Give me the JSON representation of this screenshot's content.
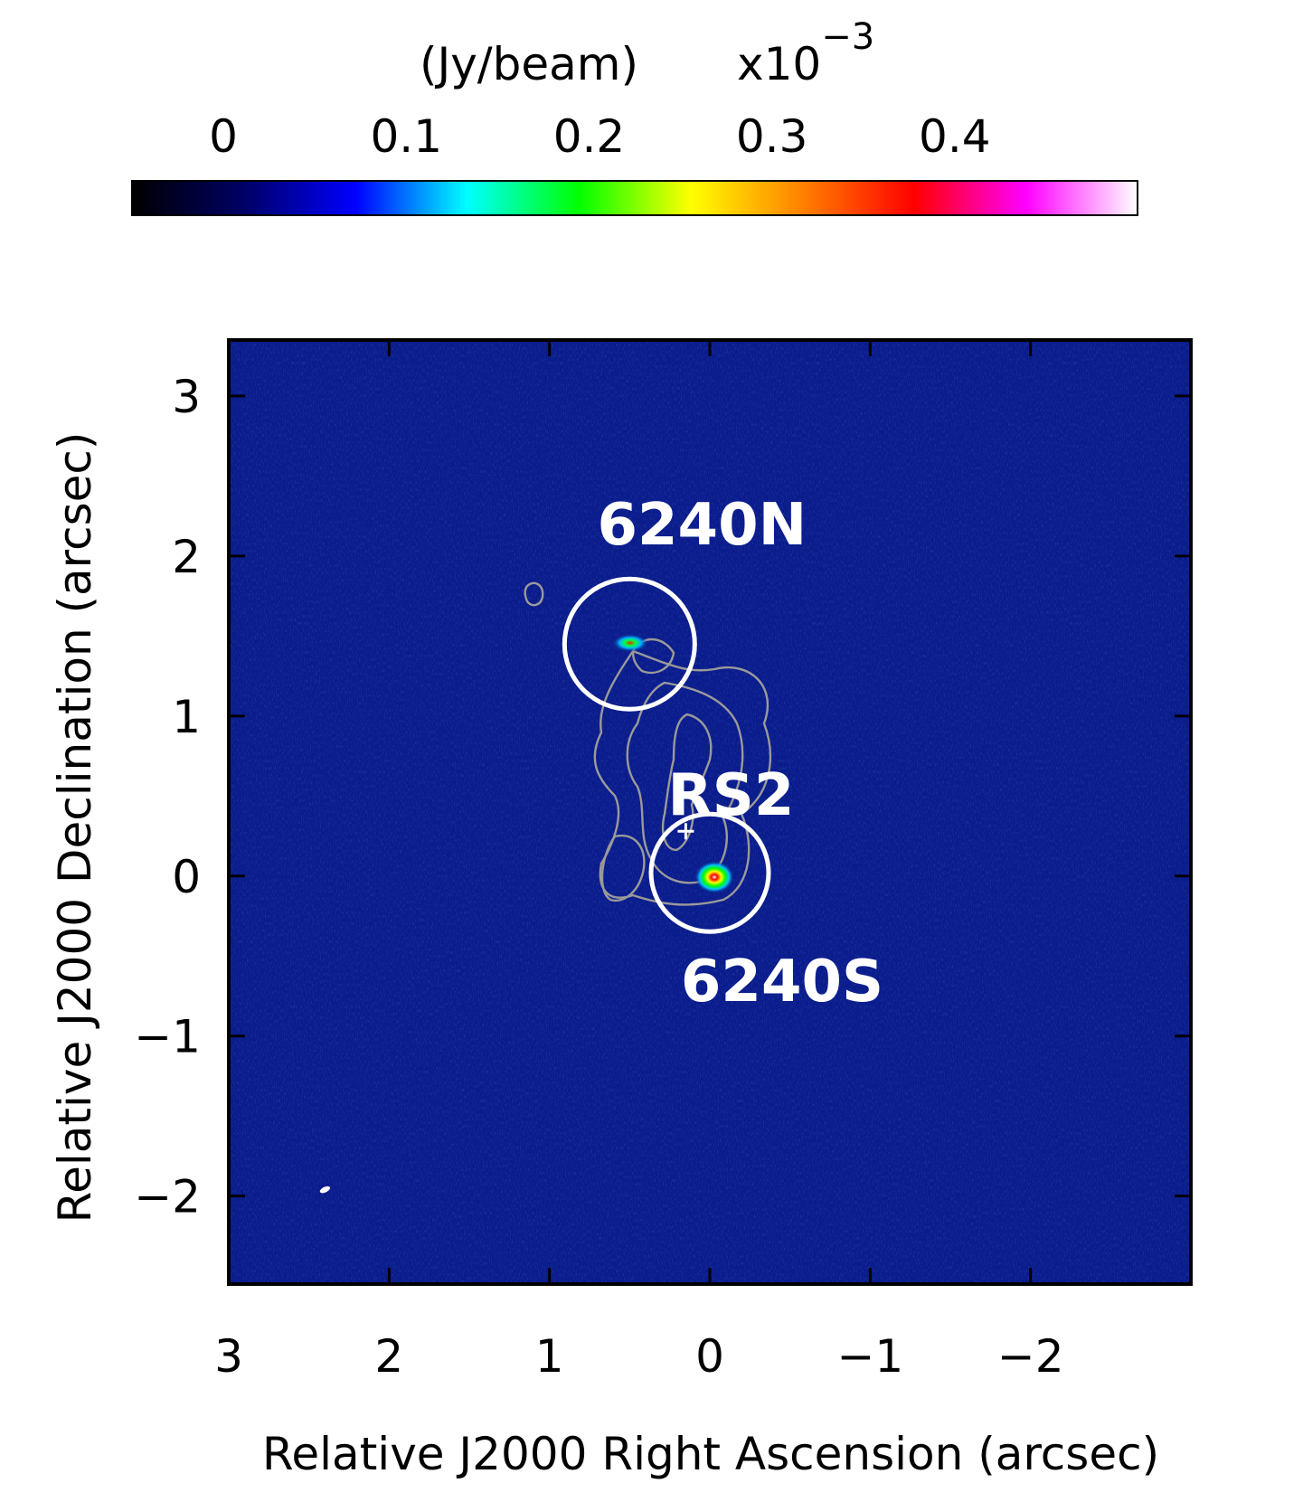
{
  "chart_data": {
    "type": "heatmap",
    "title": "",
    "xlabel": "Relative J2000 Right Ascension (arcsec)",
    "ylabel": "Relative J2000 Declination (arcsec)",
    "xlim": [
      3.0,
      -3.0
    ],
    "ylim": [
      -2.55,
      3.35
    ],
    "x_reversed": true,
    "x_ticks": [
      3,
      2,
      1,
      0,
      -1,
      -2
    ],
    "x_tick_labels": [
      "3",
      "2",
      "1",
      "0",
      "−1",
      "−2"
    ],
    "y_ticks": [
      -2,
      -1,
      0,
      1,
      2,
      3
    ],
    "y_tick_labels": [
      "−2",
      "−1",
      "0",
      "1",
      "2",
      "3"
    ],
    "colorbar": {
      "label": "(Jy/beam)",
      "multiplier_base": "x10",
      "multiplier_exp": "−3",
      "range": [
        -0.05,
        0.5
      ],
      "ticks": [
        0,
        0.1,
        0.2,
        0.3,
        0.4
      ],
      "tick_labels": [
        "0",
        "0.1",
        "0.2",
        "0.3",
        "0.4"
      ],
      "colors": [
        "#000000",
        "#000066",
        "#0000ff",
        "#00ffff",
        "#00ff00",
        "#ffff00",
        "#ff8000",
        "#ff0000",
        "#ff00ff",
        "#ffffff"
      ]
    },
    "background_color": "#0a1b8c",
    "sources": [
      {
        "name": "6240N",
        "ra": 0.5,
        "dec": 1.45
      },
      {
        "name": "6240S",
        "ra": 0.0,
        "dec": 0.02
      }
    ],
    "markers": [
      {
        "name": "RS2",
        "ra": 0.15,
        "dec": 0.28
      }
    ],
    "beam": {
      "ra": 2.4,
      "dec": -1.96
    }
  }
}
